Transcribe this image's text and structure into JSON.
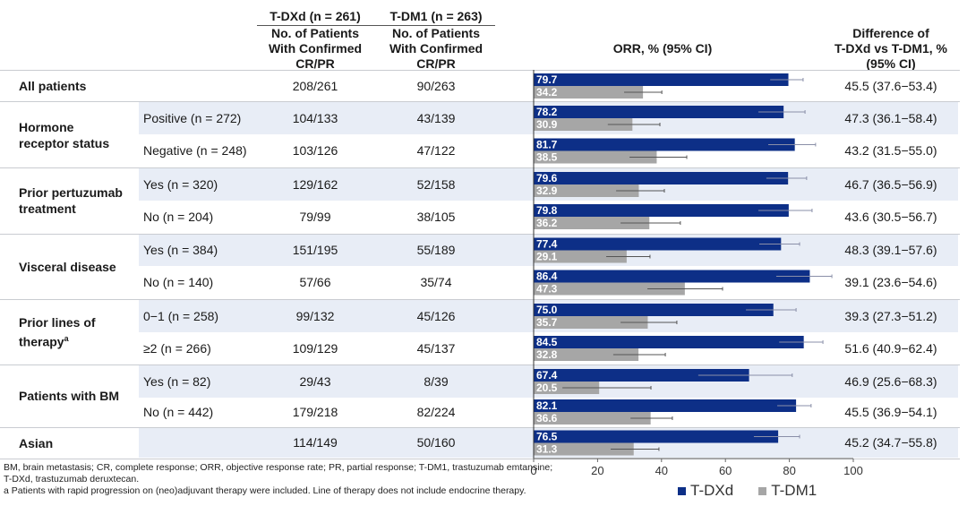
{
  "header": {
    "tdxd_title": "T-DXd (n = 261)",
    "tdm1_title": "T-DM1 (n = 263)",
    "col_sub_line1": "No. of Patients",
    "col_sub_line2": "With Confirmed",
    "col_sub_line3": "CR/PR",
    "orr_title": "ORR, % (95% CI)",
    "diff_line1": "Difference of",
    "diff_line2": "T-DXd vs T-DM1, %",
    "diff_line3": "(95% CI)"
  },
  "groups": [
    {
      "label_lines": [
        "All patients"
      ],
      "rows": [
        0
      ]
    },
    {
      "label_lines": [
        "Hormone",
        "receptor status"
      ],
      "rows": [
        1,
        2
      ]
    },
    {
      "label_lines": [
        "Prior pertuzumab",
        "treatment"
      ],
      "rows": [
        3,
        4
      ]
    },
    {
      "label_lines": [
        "Visceral disease"
      ],
      "rows": [
        5,
        6
      ]
    },
    {
      "label_lines": [
        "Prior lines of",
        "therapy"
      ],
      "superscript": "a",
      "rows": [
        7,
        8
      ]
    },
    {
      "label_lines": [
        "Patients with BM"
      ],
      "rows": [
        9,
        10
      ]
    },
    {
      "label_lines": [
        "Asian"
      ],
      "rows": [
        11
      ]
    }
  ],
  "chart_data": {
    "type": "bar",
    "orientation": "horizontal",
    "title": "ORR, % (95% CI)",
    "xlabel": "",
    "xlim": [
      0,
      100
    ],
    "xticks": [
      0,
      20,
      40,
      60,
      80,
      100
    ],
    "grid": false,
    "legend_position": "bottom",
    "series_names": [
      "T-DXd",
      "T-DM1"
    ],
    "series_colors": {
      "T-DXd": "#0d2f87",
      "T-DM1": "#a6a6a6"
    },
    "rows": [
      {
        "subgroup": "",
        "tdxd_n": "208/261",
        "tdm1_n": "90/263",
        "tdxd_orr": 79.7,
        "tdxd_ci": [
          74.0,
          84.3
        ],
        "tdm1_orr": 34.2,
        "tdm1_ci": [
          28.3,
          40.1
        ],
        "diff": "45.5 (37.6−53.4)"
      },
      {
        "subgroup": "Positive (n = 272)",
        "tdxd_n": "104/133",
        "tdm1_n": "43/139",
        "tdxd_orr": 78.2,
        "tdxd_ci": [
          70.3,
          84.9
        ],
        "tdm1_orr": 30.9,
        "tdm1_ci": [
          23.2,
          39.5
        ],
        "diff": "47.3 (36.1−58.4)"
      },
      {
        "subgroup": "Negative (n = 248)",
        "tdxd_n": "103/126",
        "tdm1_n": "47/122",
        "tdxd_orr": 81.7,
        "tdxd_ci": [
          73.4,
          88.2
        ],
        "tdm1_orr": 38.5,
        "tdm1_ci": [
          30.0,
          47.9
        ],
        "diff": "43.2 (31.5−55.0)"
      },
      {
        "subgroup": "Yes (n = 320)",
        "tdxd_n": "129/162",
        "tdm1_n": "52/158",
        "tdxd_orr": 79.6,
        "tdxd_ci": [
          72.8,
          85.4
        ],
        "tdm1_orr": 32.9,
        "tdm1_ci": [
          25.8,
          40.9
        ],
        "diff": "46.7 (36.5−56.9)"
      },
      {
        "subgroup": "No (n = 204)",
        "tdxd_n": "79/99",
        "tdm1_n": "38/105",
        "tdxd_orr": 79.8,
        "tdxd_ci": [
          70.3,
          87.1
        ],
        "tdm1_orr": 36.2,
        "tdm1_ci": [
          27.2,
          45.9
        ],
        "diff": "43.6 (30.5−56.7)"
      },
      {
        "subgroup": "Yes (n = 384)",
        "tdxd_n": "151/195",
        "tdm1_n": "55/189",
        "tdxd_orr": 77.4,
        "tdxd_ci": [
          70.6,
          83.2
        ],
        "tdm1_orr": 29.1,
        "tdm1_ci": [
          22.7,
          36.4
        ],
        "diff": "48.3 (39.1−57.6)"
      },
      {
        "subgroup": "No (n = 140)",
        "tdxd_n": "57/66",
        "tdm1_n": "35/74",
        "tdxd_orr": 86.4,
        "tdxd_ci": [
          75.9,
          93.3
        ],
        "tdm1_orr": 47.3,
        "tdm1_ci": [
          35.6,
          59.1
        ],
        "diff": "39.1 (23.6−54.6)"
      },
      {
        "subgroup": "0−1 (n = 258)",
        "tdxd_n": "99/132",
        "tdm1_n": "45/126",
        "tdxd_orr": 75.0,
        "tdxd_ci": [
          66.4,
          82.1
        ],
        "tdm1_orr": 35.7,
        "tdm1_ci": [
          27.2,
          44.8
        ],
        "diff": "39.3 (27.3−51.2)"
      },
      {
        "subgroup": "≥2 (n = 266)",
        "tdxd_n": "109/129",
        "tdm1_n": "45/137",
        "tdxd_orr": 84.5,
        "tdxd_ci": [
          76.8,
          90.5
        ],
        "tdm1_orr": 32.8,
        "tdm1_ci": [
          24.9,
          41.2
        ],
        "diff": "51.6 (40.9−62.4)"
      },
      {
        "subgroup": "Yes (n = 82)",
        "tdxd_n": "29/43",
        "tdm1_n": "8/39",
        "tdxd_orr": 67.4,
        "tdxd_ci": [
          51.5,
          80.9
        ],
        "tdm1_orr": 20.5,
        "tdm1_ci": [
          9.0,
          36.7
        ],
        "diff": "46.9 (25.6−68.3)"
      },
      {
        "subgroup": "No (n = 442)",
        "tdxd_n": "179/218",
        "tdm1_n": "82/224",
        "tdxd_orr": 82.1,
        "tdxd_ci": [
          76.2,
          86.8
        ],
        "tdm1_orr": 36.6,
        "tdm1_ci": [
          30.3,
          43.4
        ],
        "diff": "45.5 (36.9−54.1)"
      },
      {
        "subgroup": "",
        "tdxd_n": "114/149",
        "tdm1_n": "50/160",
        "tdxd_orr": 76.5,
        "tdxd_ci": [
          68.9,
          83.2
        ],
        "tdm1_orr": 31.3,
        "tdm1_ci": [
          24.1,
          39.2
        ],
        "diff": "45.2 (34.7−55.8)"
      }
    ]
  },
  "legend": {
    "tdxd": "T-DXd",
    "tdm1": "T-DM1"
  },
  "footnotes": {
    "line1": "BM, brain metastasis; CR, complete response; ORR, objective response rate; PR, partial response; T-DM1, trastuzumab emtansine;",
    "line2": "T-DXd, trastuzumab deruxtecan.",
    "line3": "a Patients with rapid progression on (neo)adjuvant therapy were included. Line of therapy does not include endocrine therapy."
  }
}
